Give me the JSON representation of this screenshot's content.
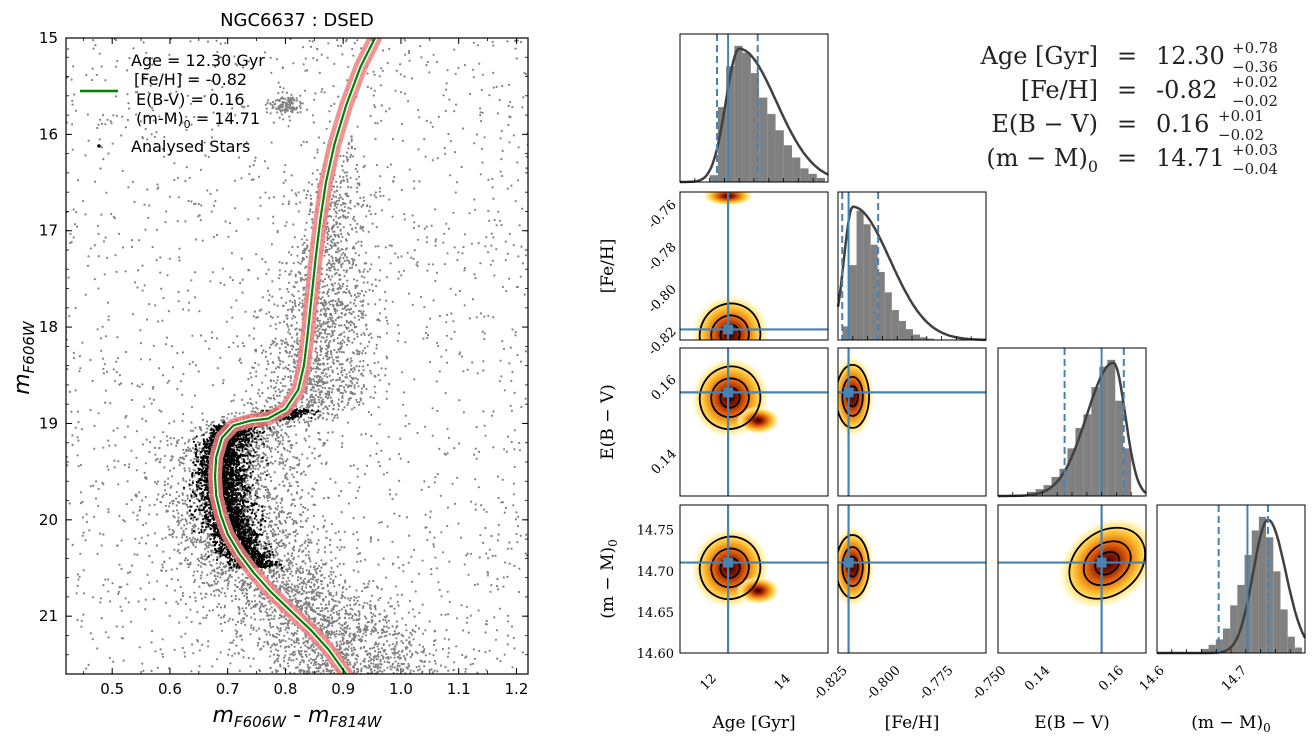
{
  "chart_data": [
    {
      "type": "scatter",
      "title": "NGC6637 : DSED",
      "xlabel_main": "m",
      "xlabel_sub1": "F606W",
      "xlabel_sep": " - m",
      "xlabel_sub2": "F814W",
      "ylabel_main": "m",
      "ylabel_sub": "F606W",
      "xlim": [
        0.42,
        1.22
      ],
      "ylim": [
        21.6,
        15.0
      ],
      "y_inverted": true,
      "xticks": [
        "0.5",
        "0.6",
        "0.7",
        "0.8",
        "0.9",
        "1.0",
        "1.1",
        "1.2"
      ],
      "xtick_values": [
        0.5,
        0.6,
        0.7,
        0.8,
        0.9,
        1.0,
        1.1,
        1.2
      ],
      "yticks": [
        "15",
        "16",
        "17",
        "18",
        "19",
        "20",
        "21"
      ],
      "ytick_values": [
        15,
        16,
        17,
        18,
        19,
        20,
        21
      ],
      "legend": {
        "placement": "upper-left",
        "lines": [
          "Age = 12.30 Gyr",
          "[Fe/H] = -0.82",
          "E(B-V) = 0.16"
        ],
        "dm_main": "(m-M)",
        "dm_sub": "0",
        "dm_value": " = 14.71",
        "points_label": "Analysed Stars"
      },
      "isochrone": {
        "color_line": "#008000",
        "color_band": "#f08080",
        "points": [
          [
            0.955,
            15.0
          ],
          [
            0.93,
            15.3
          ],
          [
            0.905,
            15.7
          ],
          [
            0.885,
            16.1
          ],
          [
            0.87,
            16.5
          ],
          [
            0.86,
            16.9
          ],
          [
            0.852,
            17.3
          ],
          [
            0.845,
            17.7
          ],
          [
            0.838,
            18.1
          ],
          [
            0.832,
            18.4
          ],
          [
            0.822,
            18.65
          ],
          [
            0.8,
            18.85
          ],
          [
            0.77,
            18.95
          ],
          [
            0.74,
            18.97
          ],
          [
            0.71,
            19.02
          ],
          [
            0.69,
            19.15
          ],
          [
            0.68,
            19.35
          ],
          [
            0.678,
            19.55
          ],
          [
            0.68,
            19.75
          ],
          [
            0.688,
            19.95
          ],
          [
            0.7,
            20.15
          ],
          [
            0.72,
            20.35
          ],
          [
            0.745,
            20.55
          ],
          [
            0.775,
            20.75
          ],
          [
            0.81,
            20.95
          ],
          [
            0.845,
            21.15
          ],
          [
            0.875,
            21.35
          ],
          [
            0.905,
            21.6
          ]
        ]
      },
      "analysed_color": "#000000",
      "field_color": "#808080"
    },
    {
      "type": "corner",
      "params": [
        "Age [Gyr]",
        "[Fe/H]",
        "E(B-V)",
        "(m-M)0"
      ],
      "best": [
        12.3,
        -0.82,
        0.156,
        14.71
      ],
      "quantiles": [
        [
          12.0,
          13.1
        ],
        [
          -0.823,
          -0.806
        ],
        [
          0.146,
          0.162
        ],
        [
          14.675,
          14.735
        ]
      ],
      "ranges": [
        [
          11.0,
          15.0
        ],
        [
          -0.825,
          -0.755
        ],
        [
          0.128,
          0.168
        ],
        [
          14.6,
          14.78
        ]
      ],
      "xaxis_labels": [
        "Age [Gyr]",
        "[Fe/H]",
        "E(B − V)",
        "(m − M)0"
      ],
      "yaxis_labels": [
        "[Fe/H]",
        "E(B − V)",
        "(m − M)0"
      ],
      "ticks": {
        "age": [
          "12",
          "14"
        ],
        "feh_y": [
          "-0.76",
          "-0.78",
          "-0.80",
          "-0.82"
        ],
        "feh_x": [
          "-0.825",
          "-0.800",
          "-0.775",
          "-0.750"
        ],
        "ebv_y": [
          "0.16",
          "0.14"
        ],
        "ebv_x": [
          "0.14",
          "0.16"
        ],
        "dm_y": [
          "14.75",
          "14.70",
          "14.65",
          "14.60"
        ],
        "dm_x": [
          "14.6",
          "14.7"
        ]
      },
      "hist_age": [
        0.05,
        0.55,
        0.85,
        1.0,
        0.95,
        0.8,
        0.62,
        0.5,
        0.38,
        0.27,
        0.18,
        0.1,
        0.06,
        0.03
      ],
      "hist_feh": [
        0.1,
        0.55,
        0.95,
        0.85,
        0.7,
        0.5,
        0.35,
        0.22,
        0.14,
        0.08,
        0.04,
        0.02,
        0.01
      ],
      "hist_ebv": [
        0.03,
        0.05,
        0.08,
        0.14,
        0.2,
        0.35,
        0.5,
        0.6,
        0.8,
        0.95,
        1.0,
        0.7,
        0.35
      ],
      "hist_dm": [
        0.03,
        0.06,
        0.1,
        0.18,
        0.35,
        0.5,
        0.72,
        0.9,
        1.0,
        0.85,
        0.6,
        0.32,
        0.12,
        0.04
      ],
      "summary": {
        "rows": [
          {
            "name": "Age [Gyr]",
            "eq": "=",
            "value": "12.30",
            "plus": "+0.78",
            "minus": "−0.36"
          },
          {
            "name": "[Fe/H]",
            "eq": "=",
            "value": "-0.82",
            "plus": "+0.02",
            "minus": "−0.02"
          },
          {
            "name": "E(B − V)",
            "eq": "=",
            "value": "0.16",
            "plus": "+0.01",
            "minus": "−0.02"
          },
          {
            "name": "(m − M)",
            "name_sub": "0",
            "eq": "=",
            "value": "14.71",
            "plus": "+0.03",
            "minus": "−0.04"
          }
        ]
      },
      "colors": {
        "hist": "#808080",
        "curve": "#404040",
        "truth": "#4682b4",
        "contour": "#000000"
      }
    }
  ]
}
